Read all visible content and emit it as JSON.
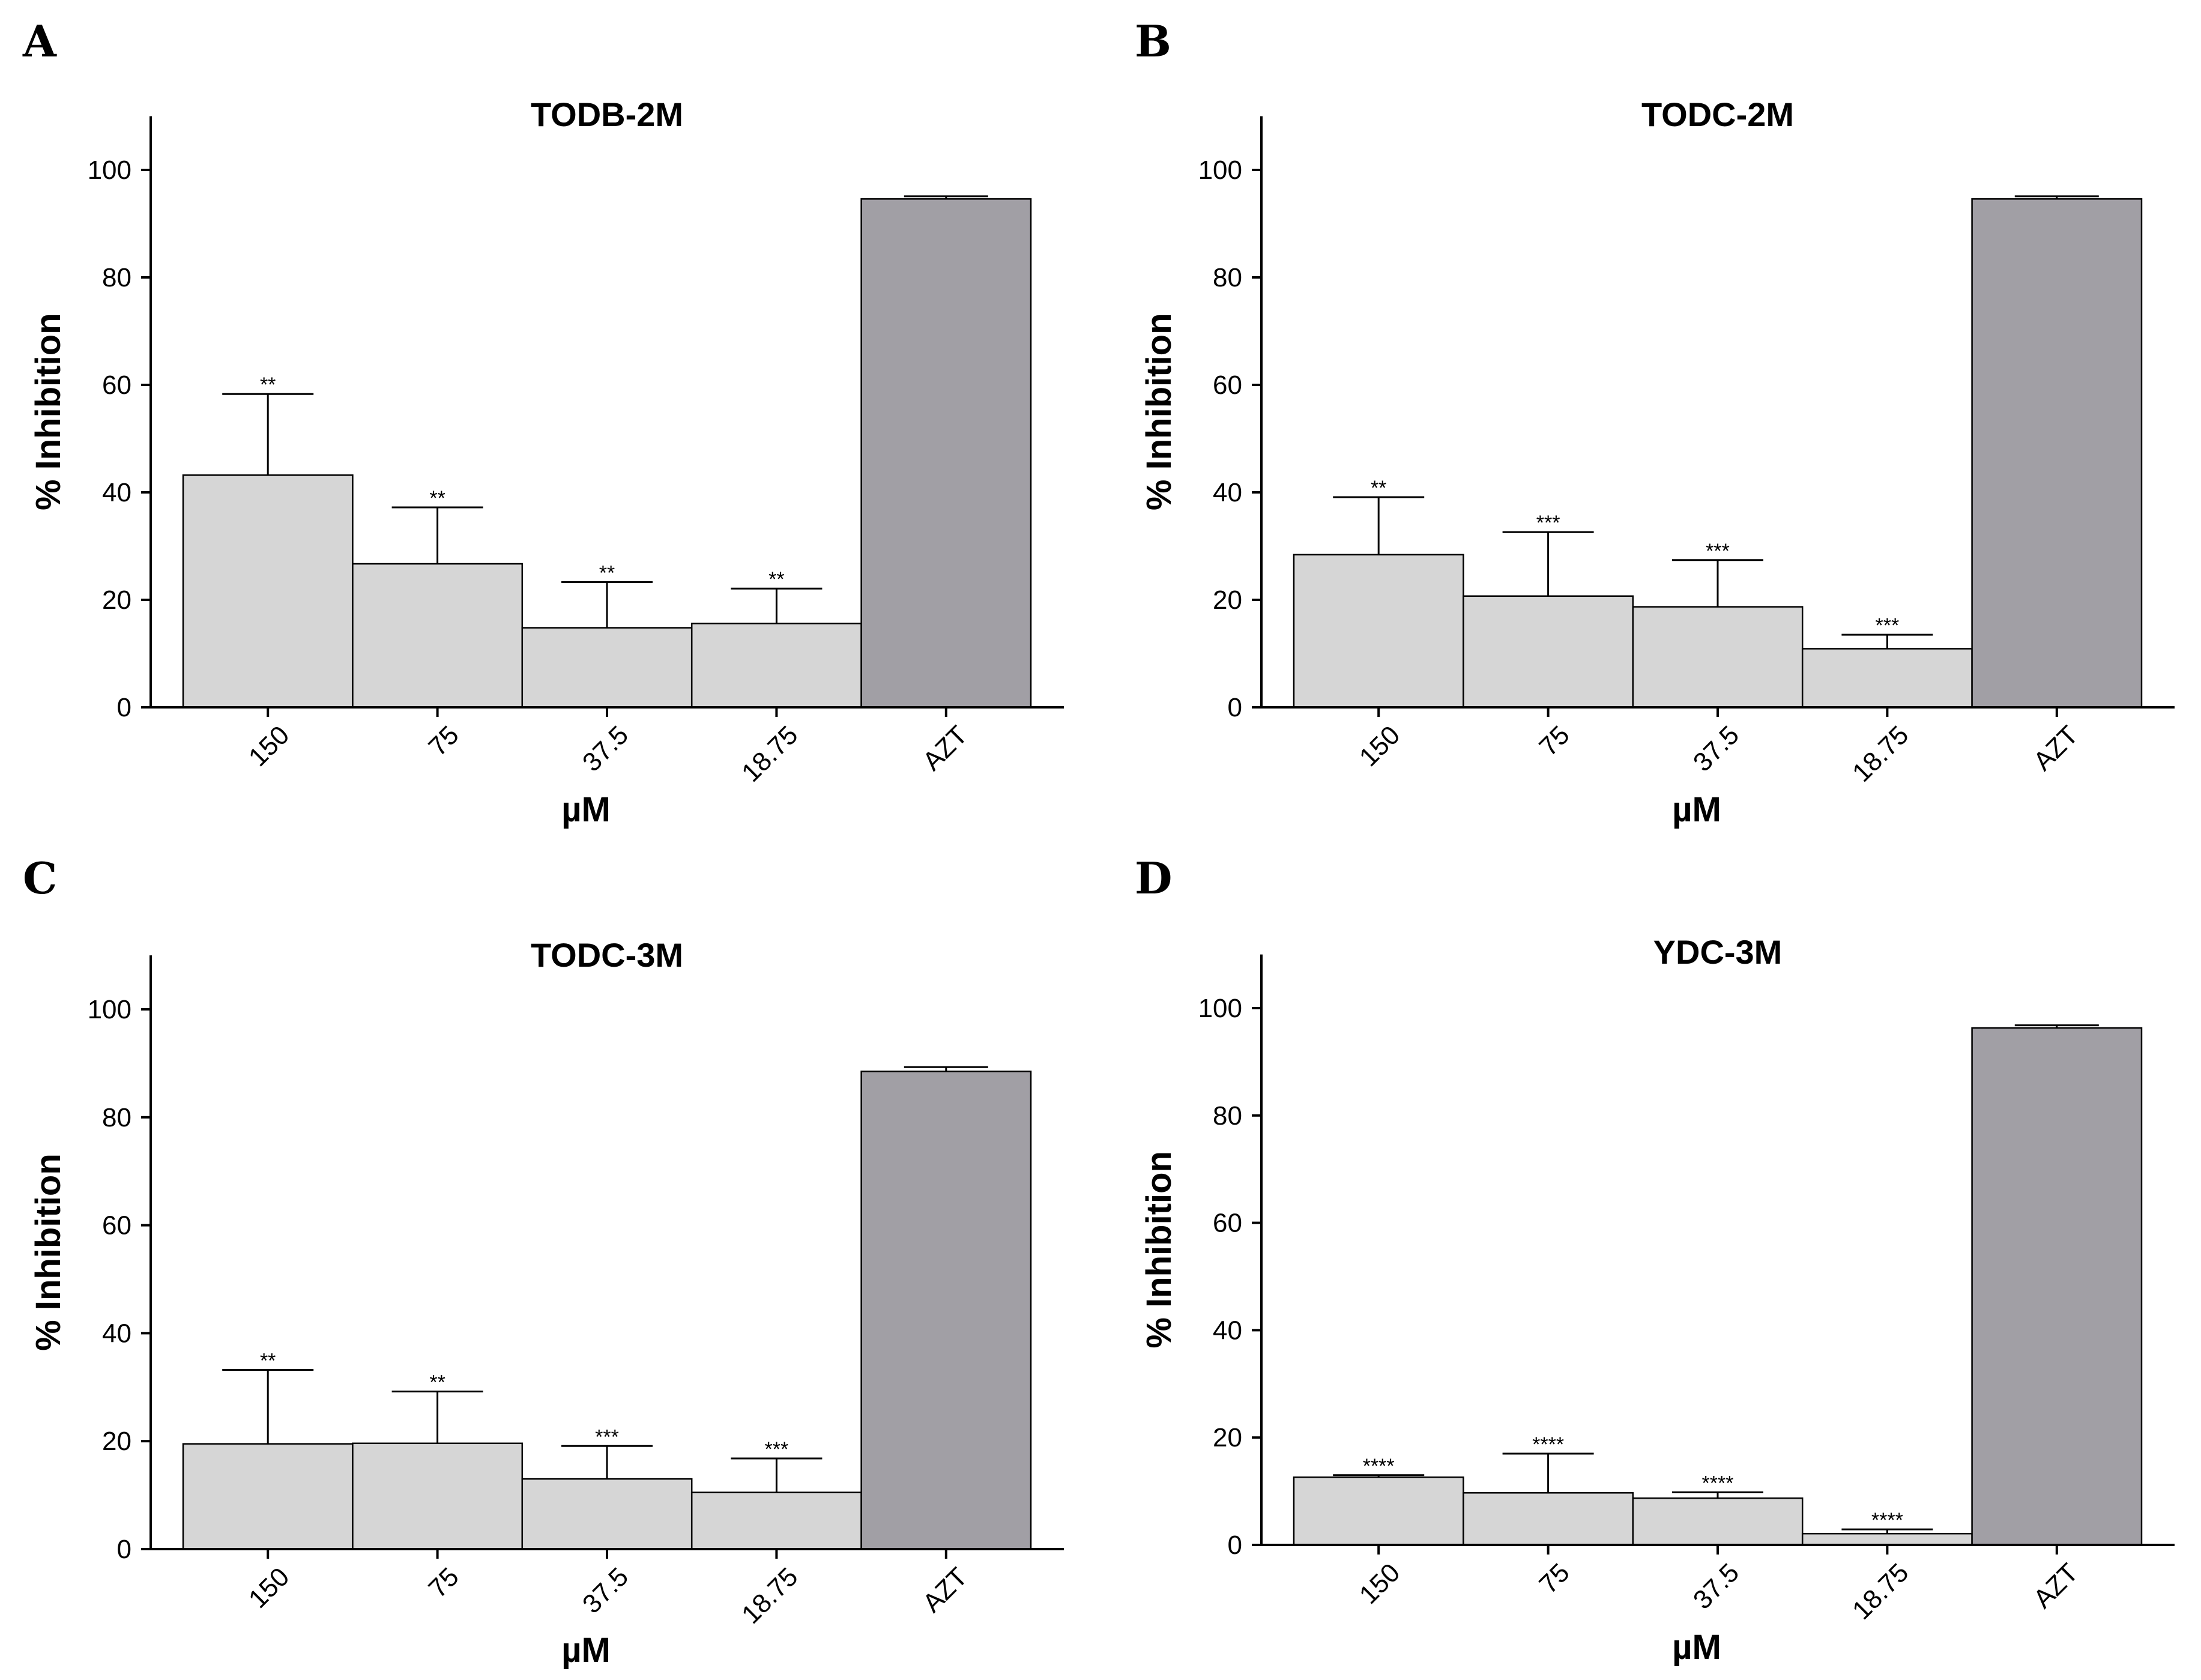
{
  "figure": {
    "bar_colors": {
      "compound": "#d6d6d6",
      "control": "#a19fa5"
    },
    "axis_color": "#000000"
  },
  "chart_data": [
    {
      "panel": "A",
      "type": "bar",
      "title": "TODB-2M",
      "xlabel": "µM",
      "ylabel": "% Inhibition",
      "ylim": [
        0,
        110
      ],
      "yticks": [
        0,
        20,
        40,
        60,
        80,
        100
      ],
      "categories": [
        "150",
        "75",
        "37.5",
        "18.75",
        "AZT"
      ],
      "values": [
        43.2,
        26.7,
        14.8,
        15.6,
        94.6
      ],
      "error_upper": [
        58.3,
        37.2,
        23.3,
        22.1,
        95.1
      ],
      "significance": [
        "**",
        "**",
        "**",
        "**",
        ""
      ]
    },
    {
      "panel": "B",
      "type": "bar",
      "title": "TODC-2M",
      "xlabel": "µM",
      "ylabel": "% Inhibition",
      "ylim": [
        0,
        110
      ],
      "yticks": [
        0,
        20,
        40,
        60,
        80,
        100
      ],
      "categories": [
        "150",
        "75",
        "37.5",
        "18.75",
        "AZT"
      ],
      "values": [
        28.4,
        20.7,
        18.7,
        10.9,
        94.6
      ],
      "error_upper": [
        39.1,
        32.6,
        27.4,
        13.5,
        95.1
      ],
      "significance": [
        "**",
        "***",
        "***",
        "***",
        ""
      ]
    },
    {
      "panel": "C",
      "type": "bar",
      "title": "TODC-3M",
      "xlabel": "µM",
      "ylabel": "% Inhibition",
      "ylim": [
        0,
        110
      ],
      "yticks": [
        0,
        20,
        40,
        60,
        80,
        100
      ],
      "categories": [
        "150",
        "75",
        "37.5",
        "18.75",
        "AZT"
      ],
      "values": [
        19.5,
        19.6,
        13.0,
        10.5,
        88.5
      ],
      "error_upper": [
        33.2,
        29.2,
        19.1,
        16.8,
        89.3
      ],
      "significance": [
        "**",
        "**",
        "***",
        "***",
        ""
      ]
    },
    {
      "panel": "D",
      "type": "bar",
      "title": "YDC-3M",
      "xlabel": "µM",
      "ylabel": "% Inhibition",
      "ylim": [
        0,
        110
      ],
      "yticks": [
        0,
        20,
        40,
        60,
        80,
        100
      ],
      "categories": [
        "150",
        "75",
        "37.5",
        "18.75",
        "AZT"
      ],
      "values": [
        12.6,
        9.7,
        8.7,
        2.1,
        96.3
      ],
      "error_upper": [
        13.0,
        17.0,
        9.8,
        2.9,
        96.8
      ],
      "significance": [
        "****",
        "****",
        "****",
        "****",
        ""
      ]
    }
  ]
}
